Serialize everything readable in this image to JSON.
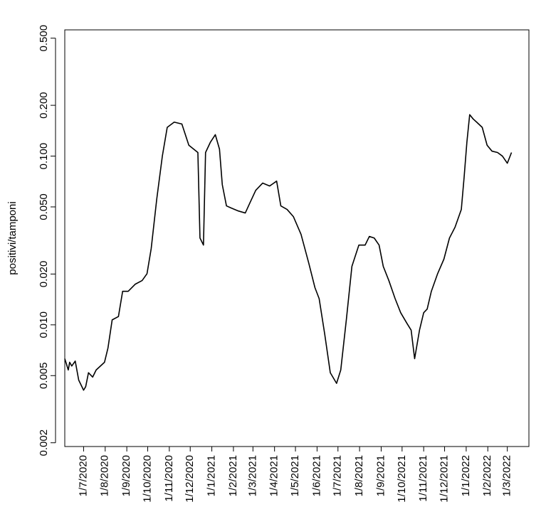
{
  "chart_data": {
    "type": "line",
    "y_label": "positivi/tamponi",
    "log_y": true,
    "grid": false,
    "color": "#000000",
    "xlim": [
      "4/6/2020",
      "1/4/2022"
    ],
    "xticks": [
      "1/7/2020",
      "1/8/2020",
      "1/9/2020",
      "1/10/2020",
      "1/11/2020",
      "1/12/2020",
      "1/1/2021",
      "1/2/2021",
      "1/3/2021",
      "1/4/2021",
      "1/5/2021",
      "1/6/2021",
      "1/7/2021",
      "1/8/2021",
      "1/9/2021",
      "1/10/2021",
      "1/11/2021",
      "1/12/2021",
      "1/1/2022",
      "1/2/2022",
      "1/3/2022"
    ],
    "ylim": [
      0.0019,
      0.56
    ],
    "yticks": [
      0.002,
      0.005,
      {
        "value": 0.01,
        "label": "0.010"
      },
      {
        "value": 0.02,
        "label": "0.020"
      },
      {
        "value": 0.05,
        "label": "0.050"
      },
      {
        "value": 0.1,
        "label": "0.100"
      },
      {
        "value": 0.2,
        "label": "0.200"
      },
      {
        "value": 0.5,
        "label": "0.500"
      }
    ],
    "x": [
      "4/6/2020",
      "9/6/2020",
      "11/6/2020",
      "14/6/2020",
      "19/6/2020",
      "24/6/2020",
      "1/7/2020",
      "4/7/2020",
      "8/7/2020",
      "14/7/2020",
      "19/7/2020",
      "31/7/2020",
      "5/8/2020",
      "11/8/2020",
      "20/8/2020",
      "26/8/2020",
      "3/9/2020",
      "13/9/2020",
      "23/9/2020",
      "30/9/2020",
      "6/10/2020",
      "14/10/2020",
      "22/10/2020",
      "29/10/2020",
      "8/11/2020",
      "19/11/2020",
      "29/11/2020",
      "12/12/2020",
      "15/12/2020",
      "20/12/2020",
      "23/12/2020",
      "30/12/2020",
      "6/1/2021",
      "12/1/2021",
      "16/1/2021",
      "22/1/2021",
      "29/1/2021",
      "8/2/2021",
      "18/2/2021",
      "25/2/2021",
      "5/3/2021",
      "15/3/2021",
      "25/3/2021",
      "4/4/2021",
      "10/4/2021",
      "19/4/2021",
      "28/4/2021",
      "9/5/2021",
      "20/5/2021",
      "29/5/2021",
      "4/6/2021",
      "12/6/2021",
      "20/6/2021",
      "29/6/2021",
      "5/7/2021",
      "13/7/2021",
      "21/7/2021",
      "31/7/2021",
      "9/8/2021",
      "15/8/2021",
      "22/8/2021",
      "29/8/2021",
      "4/9/2021",
      "12/9/2021",
      "21/9/2021",
      "29/9/2021",
      "8/10/2021",
      "14/10/2021",
      "19/10/2021",
      "26/10/2021",
      "1/11/2021",
      "6/11/2021",
      "12/11/2021",
      "21/11/2021",
      "30/11/2021",
      "8/12/2021",
      "16/12/2021",
      "25/12/2021",
      "29/12/2021",
      "2/1/2022",
      "6/1/2022",
      "11/1/2022",
      "16/1/2022",
      "24/1/2022",
      "31/1/2022",
      "7/2/2022",
      "15/2/2022",
      "22/2/2022",
      "1/3/2022",
      "7/3/2022"
    ],
    "values": [
      0.0063,
      0.0054,
      0.006,
      0.0057,
      0.0061,
      0.0047,
      0.0041,
      0.0043,
      0.0052,
      0.0049,
      0.0054,
      0.006,
      0.0073,
      0.0107,
      0.0112,
      0.0158,
      0.0158,
      0.0174,
      0.0183,
      0.0201,
      0.0283,
      0.0558,
      0.1,
      0.148,
      0.159,
      0.155,
      0.116,
      0.105,
      0.0327,
      0.0297,
      0.105,
      0.121,
      0.134,
      0.11,
      0.0678,
      0.0507,
      0.0492,
      0.0473,
      0.046,
      0.0532,
      0.0627,
      0.0692,
      0.0665,
      0.0711,
      0.0507,
      0.0483,
      0.0438,
      0.0344,
      0.0233,
      0.0166,
      0.0143,
      0.0088,
      0.0052,
      0.0045,
      0.0054,
      0.0107,
      0.0222,
      0.0297,
      0.0297,
      0.0334,
      0.0327,
      0.0297,
      0.0222,
      0.0183,
      0.0143,
      0.0118,
      0.0102,
      0.0093,
      0.0063,
      0.0093,
      0.0118,
      0.0124,
      0.0158,
      0.0201,
      0.0245,
      0.0327,
      0.0379,
      0.0483,
      0.0747,
      0.121,
      0.176,
      0.166,
      0.159,
      0.148,
      0.116,
      0.107,
      0.105,
      0.1,
      0.0907,
      0.105
    ]
  }
}
